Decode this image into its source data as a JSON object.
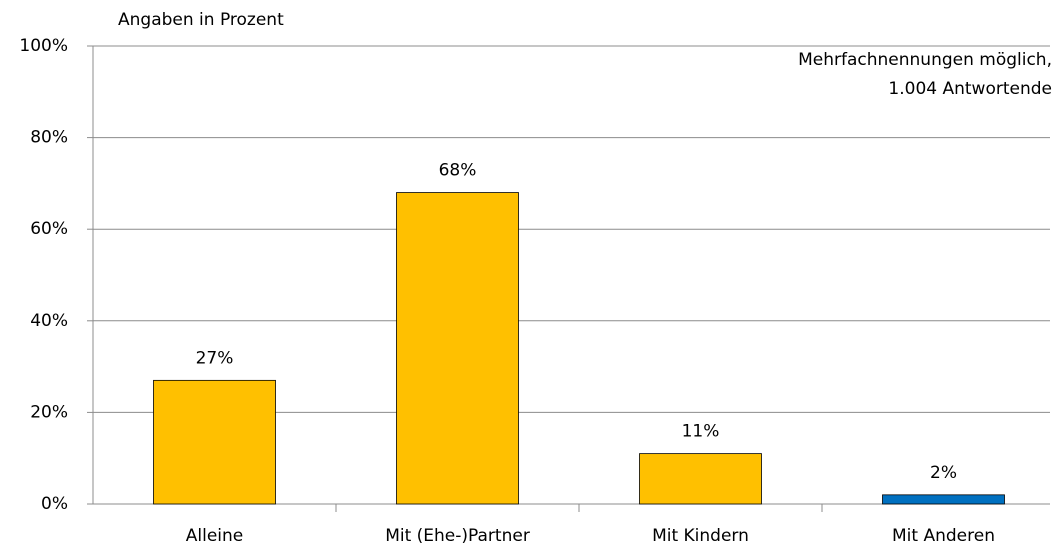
{
  "chart_data": {
    "type": "bar",
    "y_axis_label": "Angaben in Prozent",
    "annotations": [
      "Mehrfachnennungen möglich,",
      "1.004 Antwortende"
    ],
    "categories": [
      "Alleine",
      "Mit (Ehe-)Partner",
      "Mit Kindern",
      "Mit Anderen"
    ],
    "values": [
      27,
      68,
      11,
      2
    ],
    "value_labels": [
      "27%",
      "68%",
      "11%",
      "2%"
    ],
    "colors": [
      "#ffc000",
      "#ffc000",
      "#ffc000",
      "#0070c0"
    ],
    "ylim": [
      0,
      100
    ],
    "yticks": [
      {
        "value": 0,
        "label": "0%"
      },
      {
        "value": 20,
        "label": "20%"
      },
      {
        "value": 40,
        "label": "40%"
      },
      {
        "value": 60,
        "label": "60%"
      },
      {
        "value": 80,
        "label": "80%"
      },
      {
        "value": 100,
        "label": "100%"
      }
    ],
    "grid": true
  }
}
